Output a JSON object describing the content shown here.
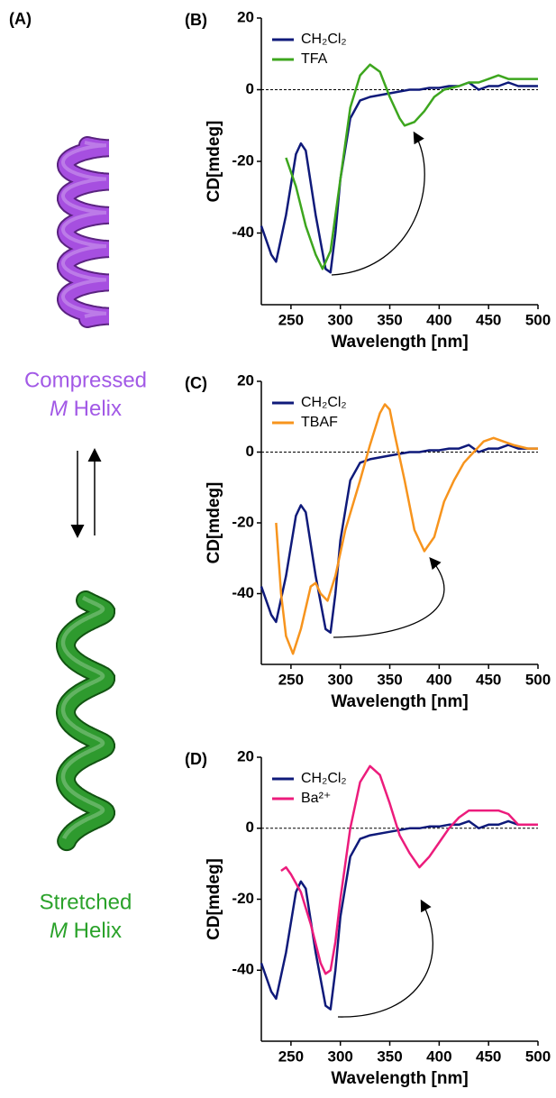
{
  "figure": {
    "panel_label": "(A)",
    "top_label": [
      "Compressed",
      "M",
      "Helix"
    ],
    "bottom_label": [
      "Stretched",
      "M",
      "Helix"
    ]
  },
  "chart_data": [
    {
      "type": "line",
      "panel_label": "(B)",
      "x_label": "Wavelength [nm]",
      "y_label": "CD[mdeg]",
      "xlim": [
        220,
        500
      ],
      "ylim": [
        -60,
        20
      ],
      "xticks": [
        250,
        300,
        350,
        400,
        450,
        500
      ],
      "yticks": [
        -40,
        -20,
        0,
        20
      ],
      "zero_line": true,
      "legend": "upper left",
      "series": [
        {
          "name": "CH₂Cl₂",
          "color": "#0f1a7a",
          "x": [
            220,
            230,
            235,
            245,
            255,
            260,
            265,
            275,
            285,
            290,
            295,
            300,
            310,
            320,
            330,
            350,
            370,
            380,
            390,
            400,
            410,
            420,
            430,
            440,
            450,
            460,
            470,
            480,
            490,
            500
          ],
          "values": [
            -38,
            -46,
            -48,
            -35,
            -18,
            -15,
            -17,
            -35,
            -50,
            -51,
            -40,
            -25,
            -8,
            -3,
            -2,
            -1,
            0,
            0,
            0.5,
            0.5,
            1,
            1,
            2,
            0,
            1,
            1,
            2,
            1,
            1,
            1
          ]
        },
        {
          "name": "TFA",
          "color": "#3da61e",
          "x": [
            245,
            255,
            265,
            275,
            282,
            290,
            300,
            310,
            320,
            330,
            340,
            350,
            360,
            365,
            375,
            385,
            395,
            405,
            420,
            430,
            440,
            450,
            460,
            470,
            480,
            490,
            500
          ],
          "values": [
            -19,
            -27,
            -38,
            -46,
            -50,
            -45,
            -25,
            -5,
            4,
            7,
            5,
            -2,
            -8,
            -10,
            -9,
            -6,
            -2,
            0,
            1,
            2,
            2,
            3,
            4,
            3,
            3,
            3,
            3
          ]
        }
      ]
    },
    {
      "type": "line",
      "panel_label": "(C)",
      "x_label": "Wavelength [nm]",
      "y_label": "CD[mdeg]",
      "xlim": [
        220,
        500
      ],
      "ylim": [
        -60,
        20
      ],
      "xticks": [
        250,
        300,
        350,
        400,
        450,
        500
      ],
      "yticks": [
        -40,
        -20,
        0,
        20
      ],
      "zero_line": true,
      "legend": "upper left",
      "series": [
        {
          "name": "CH₂Cl₂",
          "color": "#0f1a7a",
          "x": [
            220,
            230,
            235,
            245,
            255,
            260,
            265,
            275,
            285,
            290,
            295,
            300,
            310,
            320,
            330,
            350,
            370,
            380,
            390,
            400,
            410,
            420,
            430,
            440,
            450,
            460,
            470,
            480,
            490,
            500
          ],
          "values": [
            -38,
            -46,
            -48,
            -35,
            -18,
            -15,
            -17,
            -35,
            -50,
            -51,
            -40,
            -25,
            -8,
            -3,
            -2,
            -1,
            0,
            0,
            0.5,
            0.5,
            1,
            1,
            2,
            0,
            1,
            1,
            2,
            1,
            1,
            1
          ]
        },
        {
          "name": "TBAF",
          "color": "#f7941d",
          "x": [
            235,
            240,
            245,
            252,
            260,
            270,
            275,
            280,
            287,
            295,
            305,
            320,
            330,
            340,
            345,
            350,
            355,
            365,
            375,
            385,
            395,
            405,
            415,
            425,
            435,
            445,
            455,
            465,
            475,
            490,
            500
          ],
          "values": [
            -20,
            -40,
            -52,
            -57,
            -50,
            -38,
            -37,
            -40,
            -42,
            -35,
            -22,
            -8,
            2,
            11,
            13.5,
            12,
            5,
            -8,
            -22,
            -28,
            -24,
            -14,
            -8,
            -3,
            0,
            3,
            4,
            3,
            2,
            1,
            1
          ]
        }
      ]
    },
    {
      "type": "line",
      "panel_label": "(D)",
      "x_label": "Wavelength [nm]",
      "y_label": "CD[mdeg]",
      "xlim": [
        220,
        500
      ],
      "ylim": [
        -60,
        20
      ],
      "xticks": [
        250,
        300,
        350,
        400,
        450,
        500
      ],
      "yticks": [
        -40,
        -20,
        0,
        20
      ],
      "zero_line": true,
      "legend": "upper left",
      "series": [
        {
          "name": "CH₂Cl₂",
          "color": "#0f1a7a",
          "x": [
            220,
            230,
            235,
            245,
            255,
            260,
            265,
            275,
            285,
            290,
            295,
            300,
            310,
            320,
            330,
            350,
            370,
            380,
            390,
            400,
            410,
            420,
            430,
            440,
            450,
            460,
            470,
            480,
            490,
            500
          ],
          "values": [
            -38,
            -46,
            -48,
            -35,
            -18,
            -15,
            -17,
            -35,
            -50,
            -51,
            -40,
            -25,
            -8,
            -3,
            -2,
            -1,
            0,
            0,
            0.5,
            0.5,
            1,
            1,
            2,
            0,
            1,
            1,
            2,
            1,
            1,
            1
          ]
        },
        {
          "name": "Ba²⁺",
          "color": "#ec1c7c",
          "x": [
            240,
            245,
            250,
            260,
            270,
            280,
            285,
            290,
            295,
            300,
            310,
            320,
            330,
            340,
            350,
            360,
            370,
            380,
            390,
            400,
            410,
            420,
            430,
            440,
            450,
            460,
            470,
            480,
            490,
            500
          ],
          "values": [
            -12,
            -11,
            -13,
            -18,
            -27,
            -38,
            -41,
            -40,
            -32,
            -20,
            0,
            13,
            17.5,
            15,
            7,
            -2,
            -7,
            -11,
            -8,
            -4,
            0,
            3,
            5,
            5,
            5,
            5,
            4,
            1,
            1,
            1
          ]
        }
      ]
    }
  ]
}
